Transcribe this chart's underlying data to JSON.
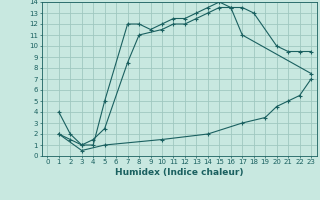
{
  "xlabel": "Humidex (Indice chaleur)",
  "bg_color": "#c8e8e0",
  "grid_color": "#a0c8c0",
  "line_color": "#1a6060",
  "xlim": [
    -0.5,
    23.5
  ],
  "ylim": [
    0,
    14
  ],
  "xticks": [
    0,
    1,
    2,
    3,
    4,
    5,
    6,
    7,
    8,
    9,
    10,
    11,
    12,
    13,
    14,
    15,
    16,
    17,
    18,
    19,
    20,
    21,
    22,
    23
  ],
  "yticks": [
    0,
    1,
    2,
    3,
    4,
    5,
    6,
    7,
    8,
    9,
    10,
    11,
    12,
    13,
    14
  ],
  "curve1_x": [
    1,
    2,
    3,
    4,
    5,
    7,
    8,
    9,
    10,
    11,
    12,
    13,
    14,
    15,
    16,
    17,
    18,
    20,
    21,
    22,
    23
  ],
  "curve1_y": [
    4,
    2,
    1,
    1,
    5,
    12,
    12,
    11.5,
    12,
    12.5,
    12.5,
    13,
    13.5,
    14,
    13.5,
    13.5,
    13,
    10,
    9.5,
    9.5,
    9.5
  ],
  "curve2_x": [
    1,
    2,
    3,
    4,
    5,
    7,
    8,
    10,
    11,
    12,
    13,
    14,
    15,
    16,
    17,
    23
  ],
  "curve2_y": [
    2,
    1.5,
    1,
    1.5,
    2.5,
    8.5,
    11,
    11.5,
    12,
    12,
    12.5,
    13,
    13.5,
    13.5,
    11,
    7.5
  ],
  "curve3_x": [
    1,
    3,
    5,
    10,
    14,
    17,
    19,
    20,
    21,
    22,
    23
  ],
  "curve3_y": [
    2,
    0.5,
    1,
    1.5,
    2,
    3,
    3.5,
    4.5,
    5,
    5.5,
    7
  ]
}
